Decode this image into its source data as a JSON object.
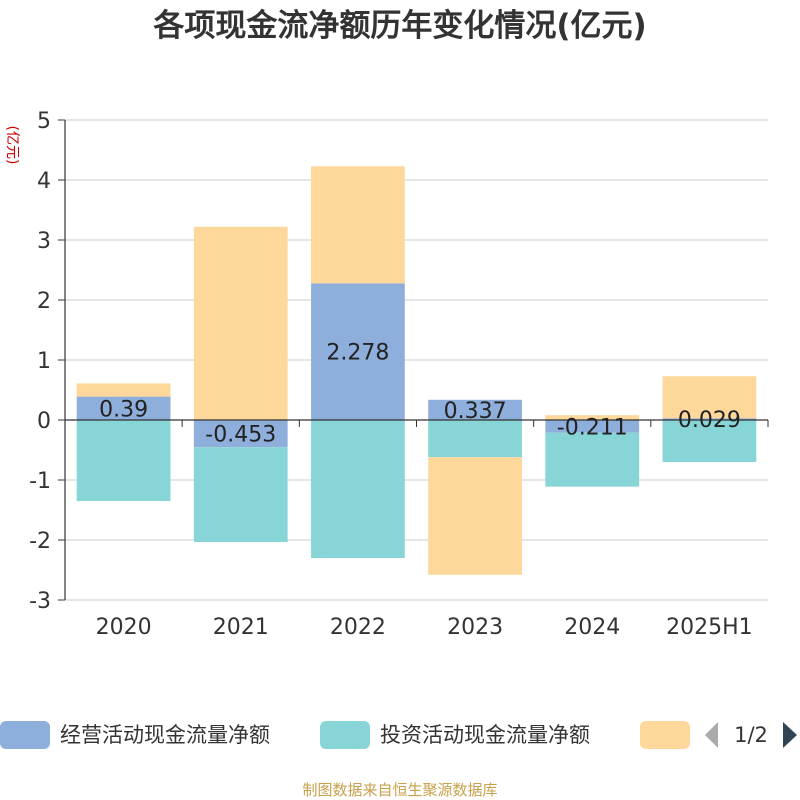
{
  "title": "各项现金流净额历年变化情况(亿元)",
  "unit_label": "(亿元)",
  "source_note": "制图数据来自恒生聚源数据库",
  "legend_page": "1/2",
  "chart_data": {
    "type": "bar",
    "stacked": true,
    "categories": [
      "2020",
      "2021",
      "2022",
      "2023",
      "2024",
      "2025H1"
    ],
    "ylim": [
      -3,
      5
    ],
    "yticks": [
      5,
      4,
      3,
      2,
      1,
      0,
      -1,
      -2,
      -3
    ],
    "grid": true,
    "legend_position": "bottom",
    "series": [
      {
        "name": "经营活动现金流量净额",
        "color": "#8eaedb",
        "values": [
          0.39,
          -0.453,
          2.278,
          0.337,
          -0.211,
          0.029
        ],
        "labels": [
          "0.39",
          "-0.453",
          "2.278",
          "0.337",
          "-0.211",
          "0.029"
        ]
      },
      {
        "name": "投资活动现金流量净额",
        "color": "#88d5d8",
        "values": [
          -1.35,
          -1.58,
          -2.3,
          -0.62,
          -0.9,
          -0.7
        ]
      },
      {
        "name": "",
        "color": "#fdd89a",
        "values": [
          0.22,
          3.22,
          1.95,
          -1.96,
          0.08,
          0.7
        ]
      }
    ]
  }
}
